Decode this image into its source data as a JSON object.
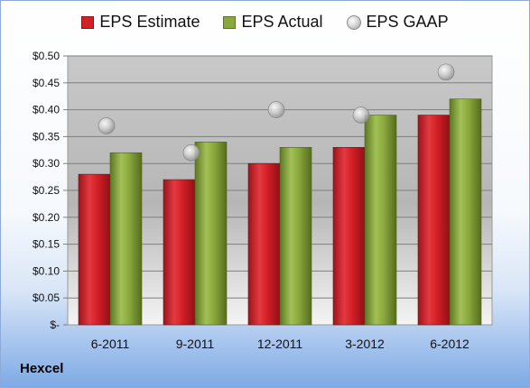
{
  "chart_data": {
    "type": "bar",
    "title": "Hexcel",
    "categories": [
      "6-2011",
      "9-2011",
      "12-2011",
      "3-2012",
      "6-2012"
    ],
    "series": [
      {
        "name": "EPS Estimate",
        "kind": "bar",
        "color": "#d31f26",
        "values": [
          0.28,
          0.27,
          0.3,
          0.33,
          0.39
        ]
      },
      {
        "name": "EPS Actual",
        "kind": "bar",
        "color": "#8aa83c",
        "values": [
          0.32,
          0.34,
          0.33,
          0.39,
          0.42
        ]
      },
      {
        "name": "EPS GAAP",
        "kind": "scatter",
        "color": "#bfbfbf",
        "values": [
          0.37,
          0.32,
          0.4,
          0.39,
          0.47
        ]
      }
    ],
    "yticks": [
      "$-",
      "$0.05",
      "$0.10",
      "$0.15",
      "$0.20",
      "$0.25",
      "$0.30",
      "$0.35",
      "$0.40",
      "$0.45",
      "$0.50"
    ],
    "ylim": [
      0,
      0.5
    ],
    "grid": true,
    "legend_position": "top"
  }
}
